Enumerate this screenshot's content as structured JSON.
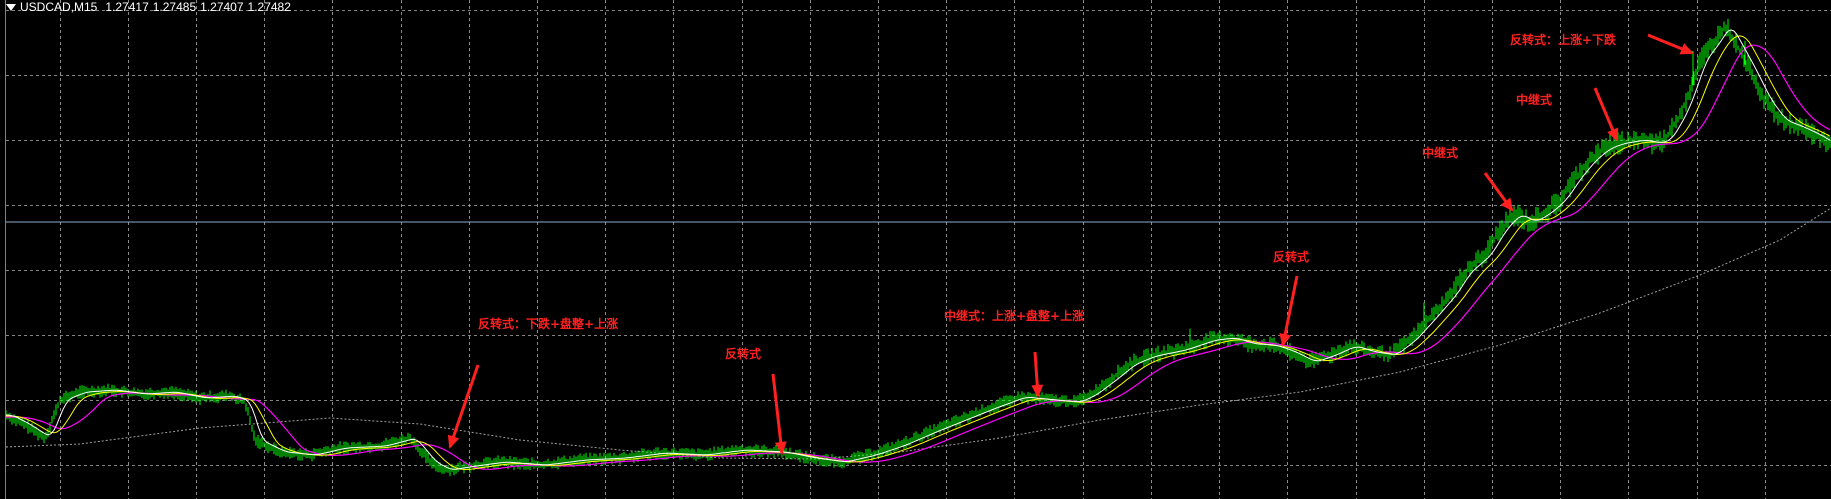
{
  "title_bar": {
    "symbol": "USDCAD,M15",
    "open": "1.27417",
    "high": "1.27485",
    "low": "1.27407",
    "close": "1.27482"
  },
  "colors": {
    "background": "#000000",
    "grid": "#b0b0b0",
    "price": "#00ff00",
    "ma_fast": "#ffffff",
    "ma_mid": "#ffff00",
    "ma_slow": "#ff00ff",
    "ma_long": "#a0a0a0",
    "hline": "#8fa8d0",
    "annotation": "#ff2020"
  },
  "annotations": [
    {
      "text": "反转式：下跌+盘整+上涨"
    },
    {
      "text": "反转式"
    },
    {
      "text": "中继式：上涨+盘整+上涨"
    },
    {
      "text": "反转式"
    },
    {
      "text": "中继式"
    },
    {
      "text": "中继式"
    },
    {
      "text": "反转式：上涨+下跌"
    }
  ]
}
